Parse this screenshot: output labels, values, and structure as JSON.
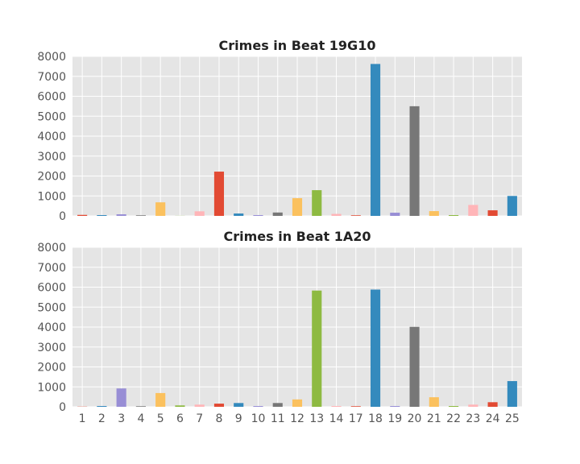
{
  "figure": {
    "background": "#ffffff",
    "axes_background": "#e5e5e5",
    "grid_color": "#ffffff"
  },
  "palette": [
    "#e24a33",
    "#348abd",
    "#988ed5",
    "#777777",
    "#fbc15e",
    "#8eba42",
    "#ffb5b8"
  ],
  "chart_data": [
    {
      "type": "bar",
      "title": "Crimes in Beat 19G10",
      "xlabel": "",
      "ylabel": "",
      "categories": [
        "1",
        "2",
        "3",
        "4",
        "5",
        "6",
        "7",
        "8",
        "9",
        "10",
        "11",
        "12",
        "13",
        "14",
        "17",
        "18",
        "19",
        "20",
        "21",
        "22",
        "23",
        "24",
        "25"
      ],
      "values": [
        50,
        40,
        80,
        30,
        680,
        5,
        230,
        2220,
        120,
        40,
        170,
        890,
        1290,
        100,
        30,
        7620,
        160,
        5500,
        240,
        40,
        550,
        280,
        1000
      ],
      "ylim": [
        0,
        8000
      ],
      "yticks": [
        "0",
        "1000",
        "2000",
        "3000",
        "4000",
        "5000",
        "6000",
        "7000",
        "8000"
      ],
      "show_xtick_labels": false
    },
    {
      "type": "bar",
      "title": "Crimes in Beat 1A20",
      "xlabel": "",
      "ylabel": "",
      "categories": [
        "1",
        "2",
        "3",
        "4",
        "5",
        "6",
        "7",
        "8",
        "9",
        "10",
        "11",
        "12",
        "13",
        "14",
        "17",
        "18",
        "19",
        "20",
        "21",
        "22",
        "23",
        "24",
        "25"
      ],
      "values": [
        10,
        40,
        920,
        30,
        690,
        70,
        110,
        160,
        190,
        40,
        190,
        370,
        5830,
        40,
        30,
        5880,
        40,
        4010,
        480,
        40,
        110,
        230,
        1290
      ],
      "ylim": [
        0,
        8000
      ],
      "yticks": [
        "0",
        "1000",
        "2000",
        "3000",
        "4000",
        "5000",
        "6000",
        "7000",
        "8000"
      ],
      "show_xtick_labels": true
    }
  ]
}
